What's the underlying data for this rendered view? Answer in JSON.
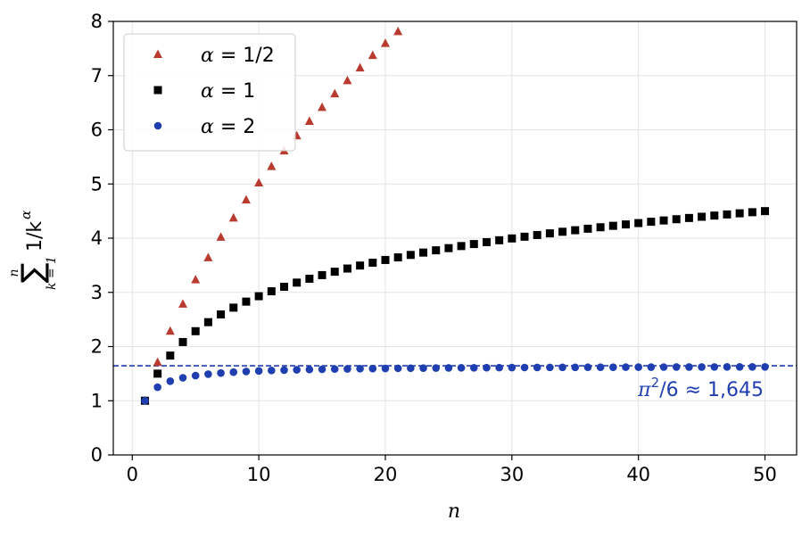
{
  "chart_data": {
    "type": "scatter",
    "xlabel": "n",
    "ylabel": "∑ 1/k^α",
    "ylabel_parts": {
      "sum": "∑",
      "upper": "n",
      "lower": "k = 1",
      "body": "1/k",
      "exp": "α"
    },
    "xlim": [
      -1.5,
      52.5
    ],
    "ylim": [
      0,
      8
    ],
    "xticks": [
      0,
      10,
      20,
      30,
      40,
      50
    ],
    "yticks": [
      0,
      1,
      2,
      3,
      4,
      5,
      6,
      7,
      8
    ],
    "grid": true,
    "legend_position": "upper-left",
    "series": [
      {
        "name": "α = 1/2",
        "legend_parts": [
          "α",
          " = 1/2"
        ],
        "color": "#b93a2e",
        "marker": "triangle",
        "alpha": 0.5,
        "n_from": 1,
        "n_to": 50
      },
      {
        "name": "α = 1",
        "legend_parts": [
          "α",
          " = 1"
        ],
        "color": "#000000",
        "marker": "square",
        "alpha": 1,
        "n_from": 1,
        "n_to": 50
      },
      {
        "name": "α = 2",
        "legend_parts": [
          "α",
          " = 2"
        ],
        "color": "#1f3fb0",
        "marker": "circle",
        "alpha": 2,
        "n_from": 1,
        "n_to": 50
      }
    ],
    "reference_line": {
      "y": 1.645,
      "style": "dashed",
      "color": "#1f3fb0"
    },
    "annotation": {
      "pi": "π",
      "sup": "2",
      "rest": "/6 ≈ 1,645",
      "color": "#1f3fb0"
    }
  }
}
